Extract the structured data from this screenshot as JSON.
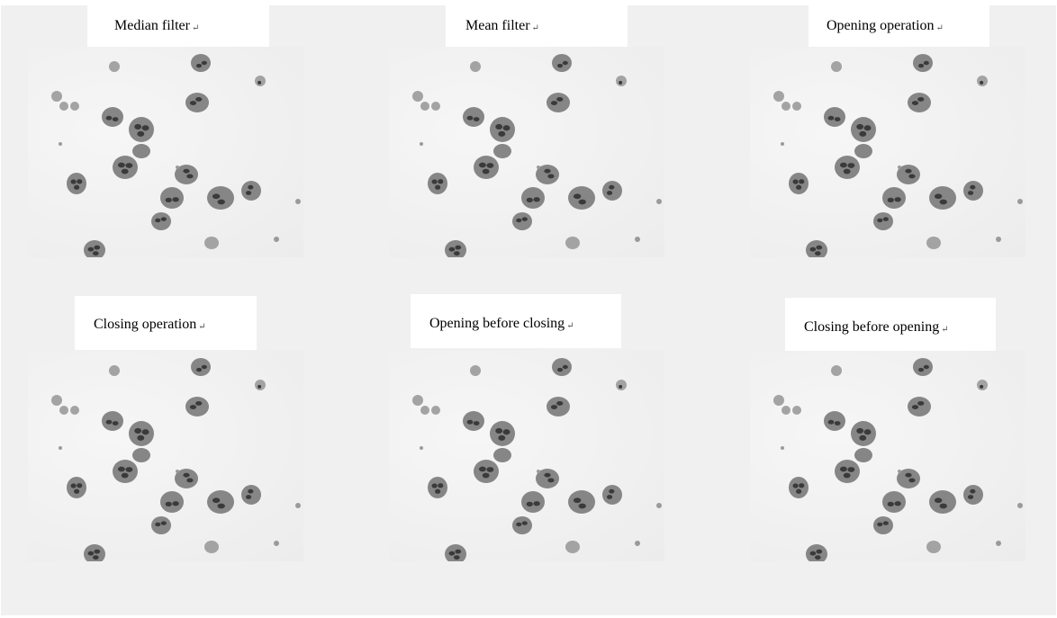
{
  "panels": [
    {
      "title": "Median filter"
    },
    {
      "title": "Mean filter"
    },
    {
      "title": "Opening operation"
    },
    {
      "title": "Closing operation"
    },
    {
      "title": "Opening before closing"
    },
    {
      "title": "Closing before opening"
    }
  ],
  "paragraph_mark": "↵",
  "colors": {
    "background": "#f0f0f0",
    "caption_bg": "#ffffff",
    "cell": "#707070",
    "nucleus": "#3a3a3a"
  }
}
